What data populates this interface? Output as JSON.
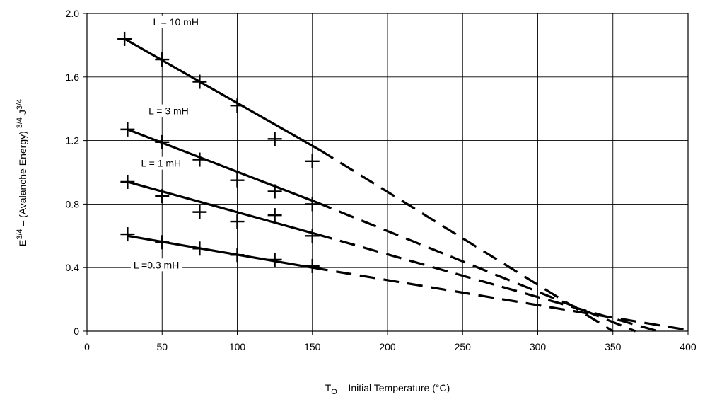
{
  "chart_data": {
    "type": "line",
    "title": "",
    "xlabel": {
      "main": "T",
      "subscript": "O",
      "rest": " – Initial Temperature (°C)"
    },
    "ylabel": {
      "parts": [
        "E",
        "3/4",
        " – (Avalanche Energy) ",
        "3/4",
        " J",
        "3/4"
      ]
    },
    "xlim": [
      0,
      400
    ],
    "ylim": [
      0,
      2.0
    ],
    "x_ticks": [
      0,
      50,
      100,
      150,
      200,
      250,
      300,
      350,
      400
    ],
    "x_tick_labels": [
      "0",
      "50",
      "100",
      "150",
      "200",
      "250",
      "300",
      "350",
      "400"
    ],
    "y_ticks": [
      0,
      0.4,
      0.8,
      1.2,
      1.6,
      2.0
    ],
    "y_tick_labels": [
      "0",
      "0.4",
      "0.8",
      "1.2",
      "1.6",
      "2.0"
    ],
    "grid": true,
    "series": [
      {
        "name": "L = 10 mH",
        "measured": {
          "x": [
            25,
            50,
            75,
            100,
            125,
            150
          ],
          "y": [
            1.84,
            1.71,
            1.57,
            1.42,
            1.21,
            1.07
          ]
        },
        "fit_solid": {
          "x": [
            25,
            155
          ],
          "y": [
            1.84,
            1.14
          ]
        },
        "fit_dashed": {
          "x": [
            155,
            350
          ],
          "y": [
            1.14,
            0.0
          ]
        }
      },
      {
        "name": "L = 3 mH",
        "measured": {
          "x": [
            27,
            50,
            75,
            100,
            125,
            150
          ],
          "y": [
            1.27,
            1.19,
            1.08,
            0.95,
            0.88,
            0.8
          ]
        },
        "fit_solid": {
          "x": [
            27,
            153
          ],
          "y": [
            1.27,
            0.81
          ]
        },
        "fit_dashed": {
          "x": [
            153,
            365
          ],
          "y": [
            0.81,
            0.0
          ]
        }
      },
      {
        "name": "L = 1 mH",
        "measured": {
          "x": [
            27,
            50,
            75,
            100,
            125,
            150
          ],
          "y": [
            0.94,
            0.85,
            0.75,
            0.69,
            0.73,
            0.6
          ]
        },
        "fit_solid": {
          "x": [
            27,
            153
          ],
          "y": [
            0.94,
            0.61
          ]
        },
        "fit_dashed": {
          "x": [
            153,
            380
          ],
          "y": [
            0.61,
            0.0
          ]
        }
      },
      {
        "name": "L =0.3 mH",
        "measured": {
          "x": [
            27,
            50,
            75,
            100,
            125,
            150
          ],
          "y": [
            0.61,
            0.56,
            0.52,
            0.48,
            0.45,
            0.41
          ]
        },
        "fit_solid": {
          "x": [
            27,
            150
          ],
          "y": [
            0.6,
            0.4
          ]
        },
        "fit_dashed": {
          "x": [
            150,
            398
          ],
          "y": [
            0.4,
            0.01
          ]
        }
      }
    ]
  }
}
